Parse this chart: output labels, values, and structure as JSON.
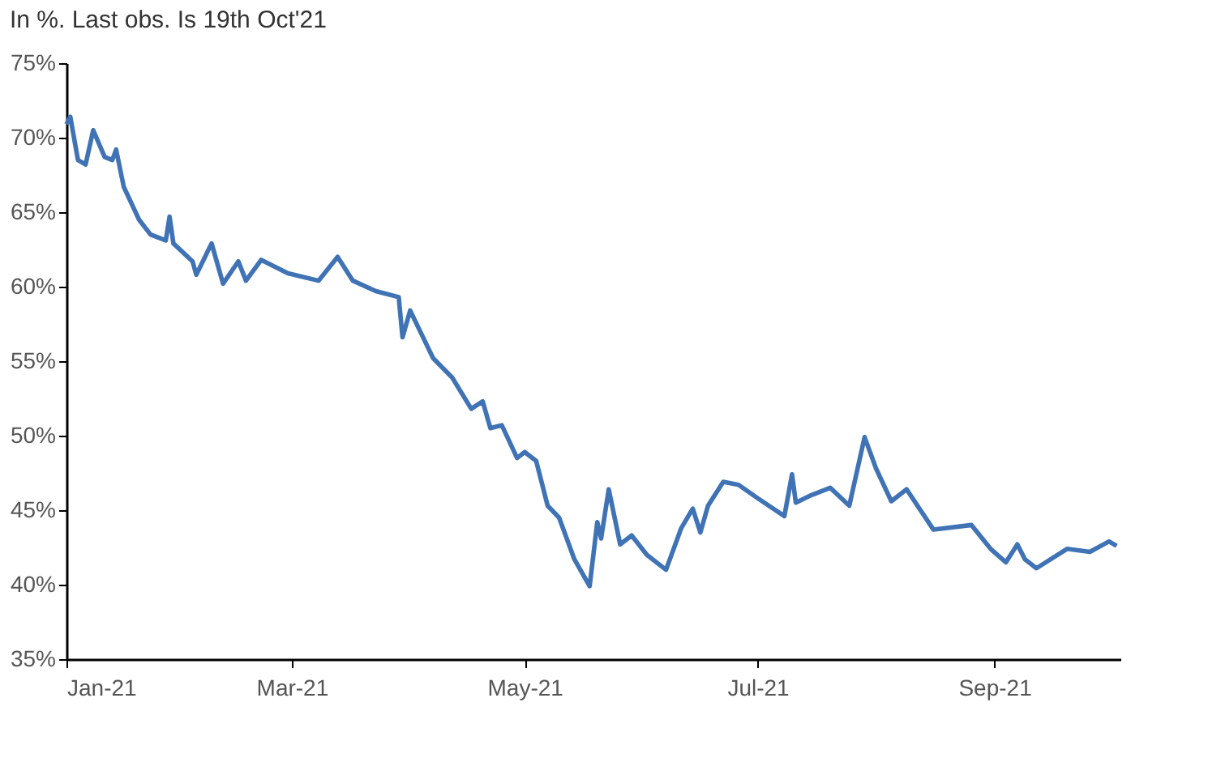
{
  "chart_data": {
    "type": "line",
    "title": "In %. Last obs. Is 19th Oct'21",
    "xlim": [
      "2021-01-01",
      "2021-10-04"
    ],
    "xticks": [
      {
        "value": "2021-01-01",
        "label": "Jan-21"
      },
      {
        "value": "2021-03-01",
        "label": "Mar-21"
      },
      {
        "value": "2021-05-01",
        "label": "May-21"
      },
      {
        "value": "2021-07-01",
        "label": "Jul-21"
      },
      {
        "value": "2021-09-01",
        "label": "Sep-21"
      }
    ],
    "ylim": [
      35,
      75
    ],
    "yticks": [
      {
        "value": 35,
        "label": "35%"
      },
      {
        "value": 40,
        "label": "40%"
      },
      {
        "value": 45,
        "label": "45%"
      },
      {
        "value": 50,
        "label": "50%"
      },
      {
        "value": 55,
        "label": "55%"
      },
      {
        "value": 60,
        "label": "60%"
      },
      {
        "value": 65,
        "label": "65%"
      },
      {
        "value": 70,
        "label": "70%"
      },
      {
        "value": 75,
        "label": "75%"
      }
    ],
    "grid": false,
    "marker": "none",
    "line_style": "solid",
    "series": [
      {
        "color": "#3f73b5",
        "x": [
          "2021-01-01",
          "2021-01-02",
          "2021-01-04",
          "2021-01-06",
          "2021-01-08",
          "2021-01-11",
          "2021-01-13",
          "2021-01-14",
          "2021-01-16",
          "2021-01-20",
          "2021-01-23",
          "2021-01-27",
          "2021-01-28",
          "2021-01-29",
          "2021-02-03",
          "2021-02-04",
          "2021-02-08",
          "2021-02-11",
          "2021-02-15",
          "2021-02-17",
          "2021-02-21",
          "2021-02-28",
          "2021-03-08",
          "2021-03-13",
          "2021-03-17",
          "2021-03-23",
          "2021-03-29",
          "2021-03-30",
          "2021-04-01",
          "2021-04-04",
          "2021-04-07",
          "2021-04-12",
          "2021-04-17",
          "2021-04-20",
          "2021-04-22",
          "2021-04-25",
          "2021-04-29",
          "2021-05-01",
          "2021-05-04",
          "2021-05-07",
          "2021-05-10",
          "2021-05-14",
          "2021-05-18",
          "2021-05-20",
          "2021-05-21",
          "2021-05-23",
          "2021-05-26",
          "2021-05-29",
          "2021-06-02",
          "2021-06-07",
          "2021-06-11",
          "2021-06-14",
          "2021-06-16",
          "2021-06-18",
          "2021-06-22",
          "2021-06-26",
          "2021-07-01",
          "2021-07-08",
          "2021-07-10",
          "2021-07-11",
          "2021-07-15",
          "2021-07-20",
          "2021-07-25",
          "2021-07-29",
          "2021-08-01",
          "2021-08-05",
          "2021-08-09",
          "2021-08-16",
          "2021-08-26",
          "2021-08-31",
          "2021-09-04",
          "2021-09-07",
          "2021-09-09",
          "2021-09-12",
          "2021-09-20",
          "2021-09-26",
          "2021-10-01",
          "2021-10-03"
        ],
        "values": [
          70.9,
          71.4,
          68.5,
          68.2,
          70.5,
          68.7,
          68.5,
          69.2,
          66.7,
          64.5,
          63.5,
          63.1,
          64.7,
          62.9,
          61.7,
          60.8,
          62.9,
          60.2,
          61.7,
          60.4,
          61.8,
          60.9,
          60.4,
          62.0,
          60.4,
          59.7,
          59.3,
          56.6,
          58.4,
          56.8,
          55.2,
          53.9,
          51.8,
          52.3,
          50.5,
          50.7,
          48.5,
          48.9,
          48.3,
          45.3,
          44.5,
          41.7,
          39.9,
          44.2,
          43.1,
          46.4,
          42.7,
          43.3,
          42.0,
          41.0,
          43.8,
          45.1,
          43.5,
          45.3,
          46.9,
          46.7,
          45.8,
          44.6,
          47.4,
          45.5,
          46.0,
          46.5,
          45.3,
          49.9,
          47.8,
          45.6,
          46.4,
          43.7,
          44.0,
          42.4,
          41.5,
          42.7,
          41.7,
          41.1,
          42.4,
          42.2,
          42.9,
          42.6
        ]
      }
    ]
  }
}
